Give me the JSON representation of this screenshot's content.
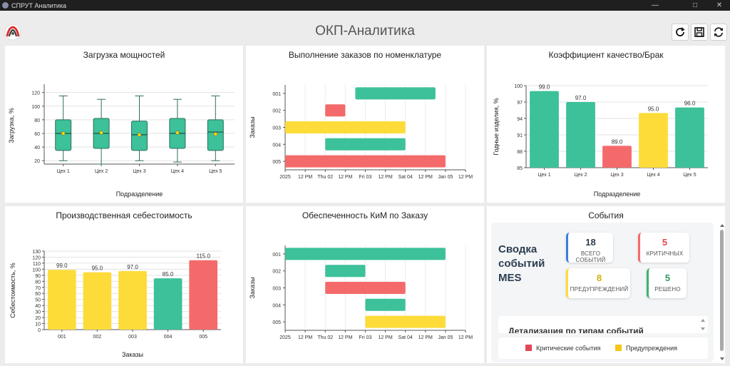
{
  "window": {
    "title": "СПРУТ Аналитика",
    "controls": {
      "minimize": "—",
      "maximize": "□",
      "close": "✕"
    }
  },
  "page": {
    "title": "ОКП-Аналитика"
  },
  "toolbar": {
    "icons": [
      "refresh-icon",
      "save-icon",
      "sync-icon"
    ]
  },
  "colors": {
    "green": "#3cc19a",
    "red": "#f46a6a",
    "yellow": "#fddc3a",
    "blue": "#3b7ddd",
    "dark": "#2c3e50"
  },
  "gantt_axis": [
    "2025",
    "12 PM",
    "Thu 02",
    "12 PM",
    "Fri 03",
    "12 PM",
    "Sat 04",
    "12 PM",
    "Jan 05",
    "12 PM"
  ],
  "chart_data": [
    {
      "type": "box",
      "title": "Загрузка мощностей",
      "xlabel": "Подразделение",
      "ylabel": "Загрузка, %",
      "categories": [
        "Цех 1",
        "Цех 2",
        "Цех 3",
        "Цех 4",
        "Цех 5"
      ],
      "yticks": [
        "20",
        "40",
        "60",
        "80",
        "100",
        "120"
      ],
      "ylim": [
        15,
        128
      ],
      "boxes": [
        {
          "min": 20,
          "q1": 35,
          "median": 60,
          "q3": 80,
          "max": 115,
          "mean": 60
        },
        {
          "min": 15,
          "q1": 38,
          "median": 60,
          "q3": 82,
          "max": 110,
          "mean": 61
        },
        {
          "min": 20,
          "q1": 35,
          "median": 58,
          "q3": 78,
          "max": 115,
          "mean": 58
        },
        {
          "min": 18,
          "q1": 38,
          "median": 60,
          "q3": 82,
          "max": 110,
          "mean": 61
        },
        {
          "min": 20,
          "q1": 35,
          "median": 62,
          "q3": 80,
          "max": 115,
          "mean": 59
        }
      ],
      "grid": true
    },
    {
      "type": "gantt",
      "title": "Выполнение заказов по номенклатуре",
      "ylabel": "Заказы",
      "categories": [
        "001",
        "002",
        "003",
        "004",
        "005"
      ],
      "x_range_hours": [
        0,
        108
      ],
      "tasks": [
        {
          "order": "001",
          "start": 42,
          "end": 90,
          "color": "green"
        },
        {
          "order": "002",
          "start": 24,
          "end": 36,
          "color": "red"
        },
        {
          "order": "003",
          "start": 0,
          "end": 72,
          "color": "yellow"
        },
        {
          "order": "004",
          "start": 24,
          "end": 72,
          "color": "green"
        },
        {
          "order": "005",
          "start": 0,
          "end": 96,
          "color": "red"
        }
      ],
      "grid": true
    },
    {
      "type": "bar",
      "title": "Коэффициент качество/Брак",
      "xlabel": "Подразделение",
      "ylabel": "Годные изделия, %",
      "categories": [
        "Цех 1",
        "Цех 2",
        "Цех 3",
        "Цех 4",
        "Цех 5"
      ],
      "values": [
        99.0,
        97.0,
        89.0,
        95.0,
        96.0
      ],
      "labels": [
        "99.0",
        "97.0",
        "89.0",
        "95.0",
        "96.0"
      ],
      "colors": [
        "green",
        "green",
        "red",
        "yellow",
        "green"
      ],
      "yticks": [
        "85",
        "88",
        "91",
        "94",
        "97",
        "100"
      ],
      "ylim": [
        85,
        100
      ],
      "grid": true
    },
    {
      "type": "bar",
      "title": "Производственная себестоимость",
      "xlabel": "Заказы",
      "ylabel": "Себестоимость, %",
      "categories": [
        "001",
        "002",
        "003",
        "004",
        "005"
      ],
      "values": [
        99.0,
        95.0,
        97.0,
        85.0,
        115.0
      ],
      "labels": [
        "99.0",
        "95.0",
        "97.0",
        "85.0",
        "115.0"
      ],
      "colors": [
        "yellow",
        "yellow",
        "yellow",
        "green",
        "red"
      ],
      "yticks": [
        "0",
        "10",
        "20",
        "30",
        "40",
        "50",
        "60",
        "70",
        "80",
        "90",
        "100",
        "110",
        "120",
        "130"
      ],
      "ylim": [
        0,
        130
      ],
      "grid": true
    },
    {
      "type": "gantt",
      "title": "Обеспеченность КиМ по Заказу",
      "ylabel": "Заказы",
      "categories": [
        "001",
        "002",
        "003",
        "004",
        "005"
      ],
      "x_range_hours": [
        0,
        108
      ],
      "tasks": [
        {
          "order": "001",
          "start": 0,
          "end": 96,
          "color": "green"
        },
        {
          "order": "002",
          "start": 24,
          "end": 48,
          "color": "green"
        },
        {
          "order": "003",
          "start": 24,
          "end": 72,
          "color": "red"
        },
        {
          "order": "004",
          "start": 48,
          "end": 72,
          "color": "green"
        },
        {
          "order": "005",
          "start": 48,
          "end": 96,
          "color": "yellow"
        }
      ],
      "grid": true
    }
  ],
  "events": {
    "title": "События",
    "summary_title": "Сводка событий MES",
    "cards": [
      {
        "value": "18",
        "label": "ВСЕГО СОБЫТИЙ",
        "color": "blue"
      },
      {
        "value": "5",
        "label": "КРИТИЧНЫХ",
        "color": "red"
      },
      {
        "value": "8",
        "label": "ПРЕДУПРЕЖДЕНИЙ",
        "color": "yellow"
      },
      {
        "value": "5",
        "label": "РЕШЕНО",
        "color": "green"
      }
    ],
    "detail_title": "Детализация по типам событий",
    "legend": [
      {
        "label": "Критические события",
        "color": "red"
      },
      {
        "label": "Предупреждения",
        "color": "yellow"
      }
    ]
  }
}
